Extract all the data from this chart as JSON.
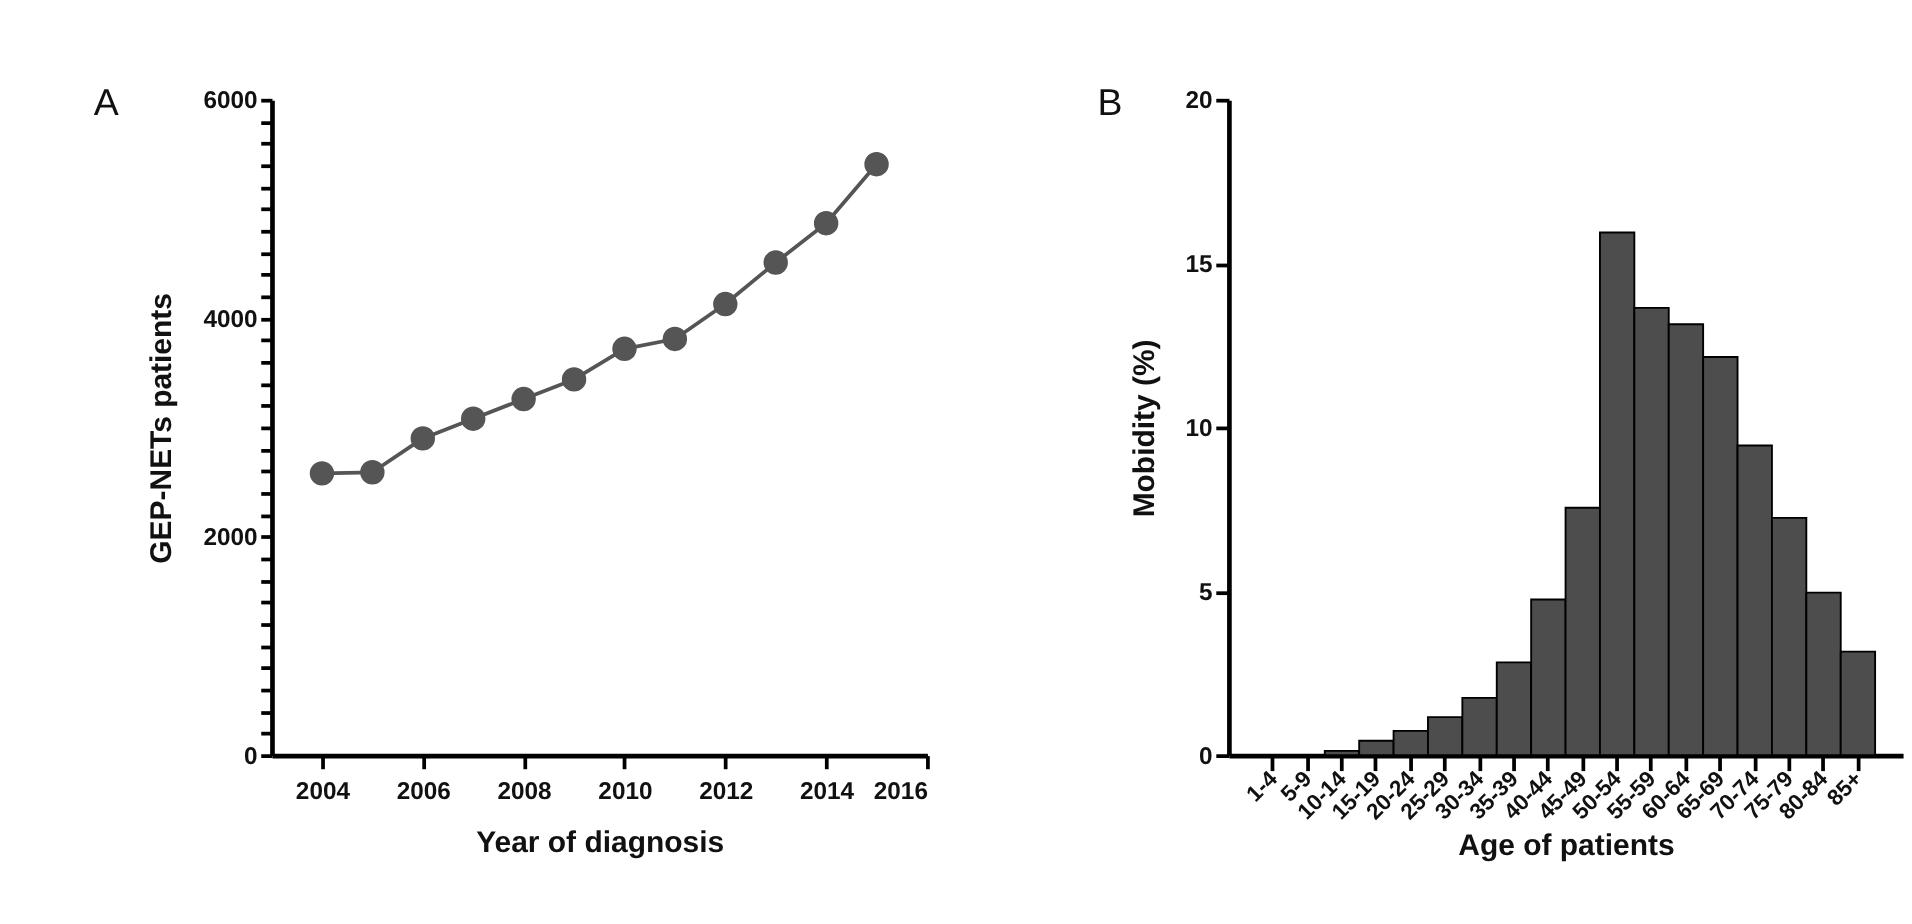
{
  "chart_data": [
    {
      "type": "line",
      "annotations": [
        "A"
      ],
      "xlabel": "Year of diagnosis",
      "ylabel": "GEP-NETs patients",
      "x": [
        2004,
        2005,
        2006,
        2007,
        2008,
        2009,
        2010,
        2011,
        2012,
        2013,
        2014,
        2015
      ],
      "series": [
        {
          "color": "#555555",
          "values": [
            2580,
            2590,
            2900,
            3080,
            3260,
            3440,
            3720,
            3810,
            4130,
            4510,
            4870,
            5410
          ]
        }
      ],
      "xlim": [
        2003,
        2016
      ],
      "xticks": [
        2004,
        2006,
        2008,
        2010,
        2012,
        2014,
        2016
      ],
      "ylim": [
        0,
        6000
      ],
      "yticks": [
        0,
        {
          "value": 200,
          "label": null
        },
        {
          "value": 400,
          "label": null
        },
        {
          "value": 600,
          "label": null
        },
        {
          "value": 800,
          "label": null
        },
        {
          "value": 1000,
          "label": null
        },
        {
          "value": 1200,
          "label": null
        },
        {
          "value": 1400,
          "label": null
        },
        {
          "value": 1600,
          "label": null
        },
        {
          "value": 1800,
          "label": null
        },
        2000,
        {
          "value": 2200,
          "label": null
        },
        {
          "value": 2400,
          "label": null
        },
        {
          "value": 2600,
          "label": null
        },
        {
          "value": 2800,
          "label": null
        },
        {
          "value": 3000,
          "label": null
        },
        {
          "value": 3200,
          "label": null
        },
        {
          "value": 3400,
          "label": null
        },
        {
          "value": 3600,
          "label": null
        },
        {
          "value": 3800,
          "label": null
        },
        4000,
        {
          "value": 4200,
          "label": null
        },
        {
          "value": 4400,
          "label": null
        },
        {
          "value": 4600,
          "label": null
        },
        {
          "value": 4800,
          "label": null
        },
        {
          "value": 5000,
          "label": null
        },
        {
          "value": 5200,
          "label": null
        },
        {
          "value": 5400,
          "label": null
        },
        {
          "value": 5600,
          "label": null
        },
        {
          "value": 5800,
          "label": null
        },
        6000
      ],
      "marker": "circle",
      "line_style": "solid",
      "grid": false
    },
    {
      "type": "bar",
      "annotations": [
        "B"
      ],
      "xlabel": "Age of patients",
      "ylabel": "Mobidity (%)",
      "categories": [
        "1-4",
        "5-9",
        "10-14",
        "15-19",
        "20-24",
        "25-29",
        "30-34",
        "35-39",
        "40-44",
        "45-49",
        "50-54",
        "55-59",
        "60-64",
        "65-69",
        "70-74",
        "75-79",
        "80-84",
        "85+"
      ],
      "values": [
        0,
        0,
        0.13,
        0.44,
        0.74,
        1.16,
        1.75,
        2.83,
        4.75,
        7.55,
        15.95,
        13.65,
        13.15,
        12.15,
        9.45,
        7.24,
        4.96,
        3.16
      ],
      "color": "#4d4d4d",
      "ylim": [
        0,
        20
      ],
      "yticks": [
        0,
        5,
        10,
        15,
        20
      ],
      "grid": false
    }
  ]
}
